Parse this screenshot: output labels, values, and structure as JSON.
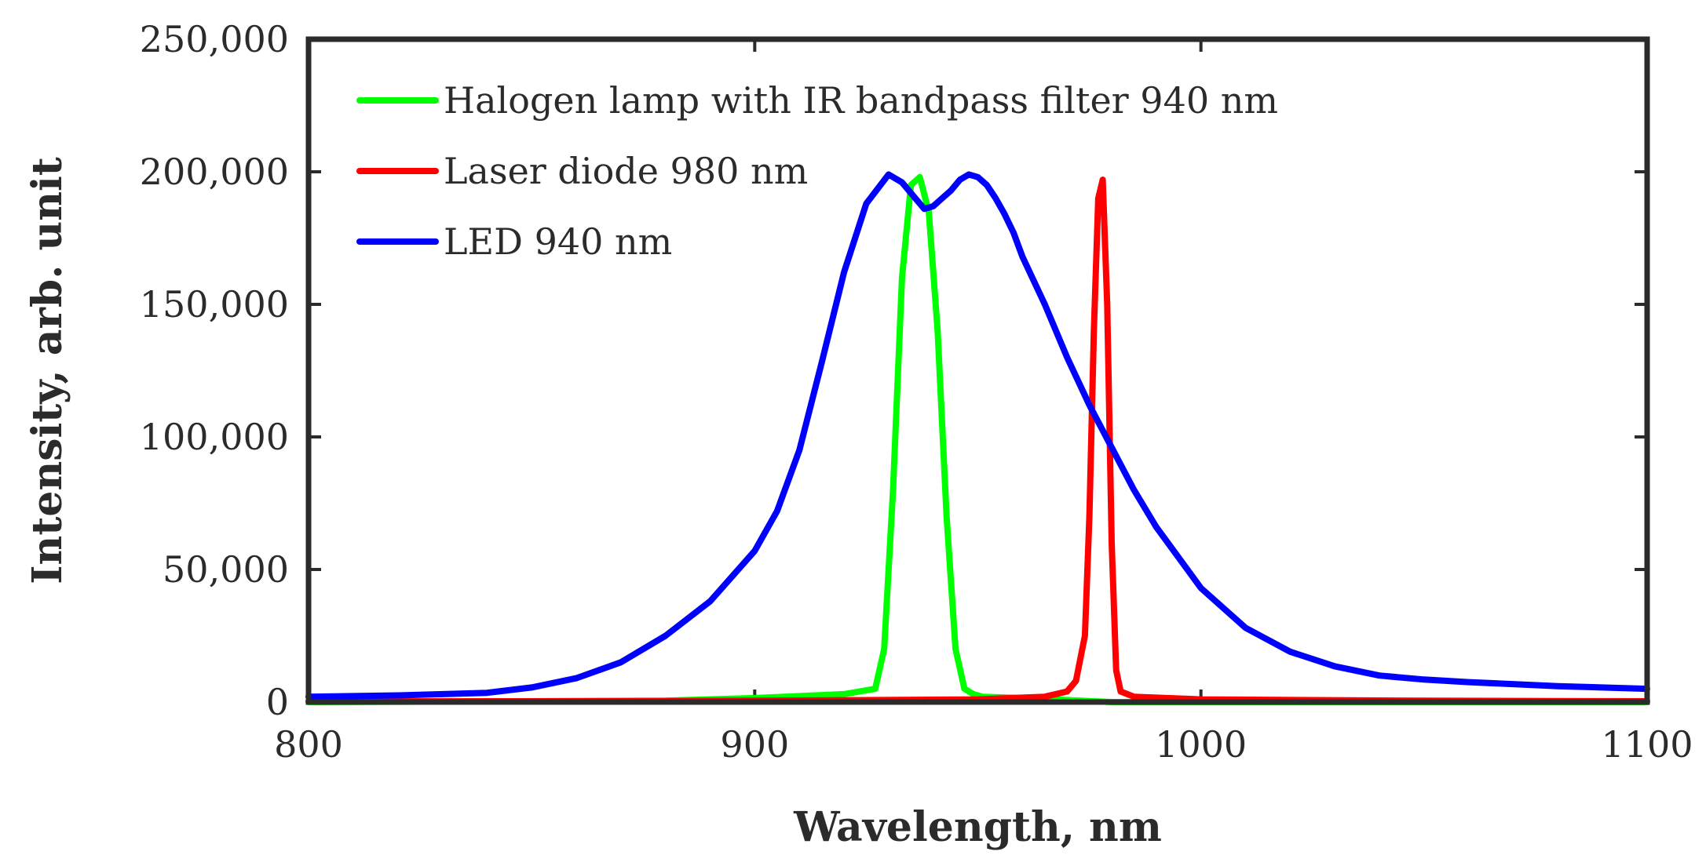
{
  "chart_data": {
    "type": "line",
    "title": "",
    "xlabel": "Wavelength, nm",
    "ylabel": "Intensity, arb. unit",
    "xlim": [
      800,
      1100
    ],
    "ylim": [
      0,
      250000
    ],
    "xticks": [
      800,
      900,
      1000,
      1100
    ],
    "xtick_labels": [
      "800",
      "900",
      "1000",
      "1100"
    ],
    "yticks": [
      0,
      50000,
      100000,
      150000,
      200000,
      250000
    ],
    "ytick_labels": [
      "0",
      "50,000",
      "100,000",
      "150,000",
      "200,000",
      "250,000"
    ],
    "grid": false,
    "legend_position": "top-left",
    "series": [
      {
        "name": "Halogen lamp with IR bandpass filter 940 nm",
        "color": "#00ff00",
        "x": [
          800,
          880,
          900,
          920,
          927,
          929,
          931,
          933,
          935,
          937,
          939,
          941,
          943,
          945,
          947,
          949,
          951,
          960,
          980,
          1100
        ],
        "y": [
          0,
          500,
          1500,
          3000,
          5000,
          20000,
          80000,
          160000,
          195000,
          198000,
          185000,
          140000,
          70000,
          20000,
          5000,
          3000,
          2000,
          1500,
          0,
          0
        ]
      },
      {
        "name": "Laser diode 980 nm",
        "color": "#ff0000",
        "x": [
          800,
          850,
          900,
          950,
          965,
          970,
          972,
          974,
          975,
          976,
          977,
          978,
          979,
          980,
          981,
          982,
          985,
          1000,
          1050,
          1100
        ],
        "y": [
          200,
          300,
          500,
          1000,
          2000,
          4000,
          8000,
          25000,
          70000,
          140000,
          190000,
          197000,
          150000,
          60000,
          12000,
          4000,
          2000,
          1000,
          500,
          300
        ]
      },
      {
        "name": "LED 940 nm",
        "color": "#0000ff",
        "x": [
          800,
          820,
          840,
          850,
          860,
          870,
          880,
          890,
          900,
          905,
          910,
          915,
          920,
          925,
          930,
          933,
          936,
          938,
          940,
          942,
          944,
          946,
          948,
          950,
          952,
          954,
          956,
          958,
          960,
          965,
          970,
          975,
          980,
          985,
          990,
          1000,
          1010,
          1020,
          1030,
          1040,
          1050,
          1060,
          1080,
          1100
        ],
        "y": [
          2000,
          2500,
          3500,
          5500,
          9000,
          15000,
          25000,
          38000,
          57000,
          72000,
          95000,
          128000,
          162000,
          188000,
          199000,
          196000,
          190000,
          186000,
          187000,
          190000,
          193000,
          197000,
          199000,
          198000,
          195000,
          190000,
          184000,
          177000,
          168000,
          150000,
          130000,
          112000,
          96000,
          80000,
          66000,
          43000,
          28000,
          19000,
          13500,
          10000,
          8500,
          7500,
          6000,
          5000
        ]
      }
    ]
  }
}
